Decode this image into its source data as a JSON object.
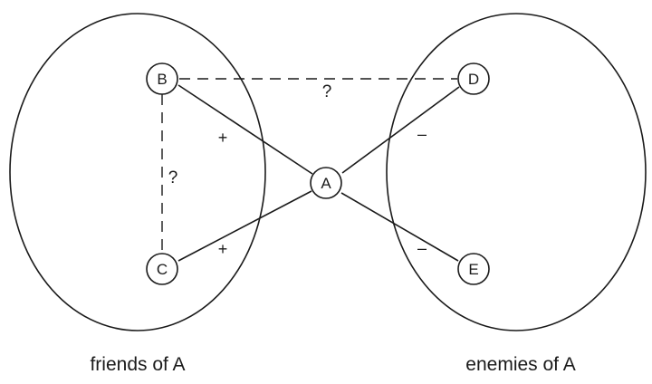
{
  "groups": {
    "friends": {
      "label": "friends of A"
    },
    "enemies": {
      "label": "enemies of A"
    }
  },
  "nodes": {
    "A": {
      "label": "A"
    },
    "B": {
      "label": "B"
    },
    "C": {
      "label": "C"
    },
    "D": {
      "label": "D"
    },
    "E": {
      "label": "E"
    }
  },
  "edges": {
    "A_B": {
      "sign": "+"
    },
    "A_C": {
      "sign": "+"
    },
    "A_D": {
      "sign": "–"
    },
    "A_E": {
      "sign": "–"
    },
    "B_D": {
      "sign": "?"
    },
    "B_C": {
      "sign": "?"
    }
  }
}
